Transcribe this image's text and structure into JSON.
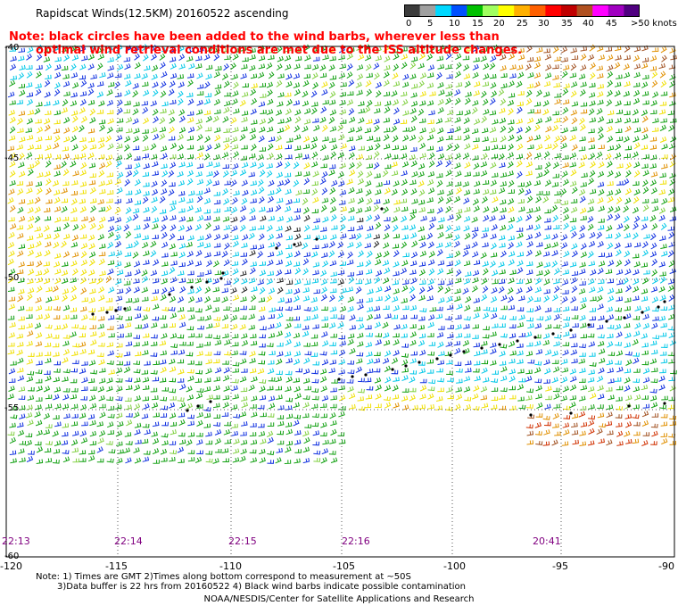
{
  "title": "Rapidscat Winds(12.5KM) 20160522 ascending",
  "note": {
    "line1": "Note: black circles have been added to the wind barbs, wherever less than",
    "line2": "optimal wind retrieval conditions are met due to the ISS altitude changes."
  },
  "colorbar": {
    "labels": [
      "0",
      "5",
      "10",
      "15",
      "20",
      "25",
      "30",
      "35",
      "40",
      "45",
      ">50 knots"
    ],
    "colors": [
      "#3c3c3c",
      "#a0a0a0",
      "#00d8ff",
      "#0050ff",
      "#00c000",
      "#a0ff60",
      "#ffff00",
      "#ffb000",
      "#ff6000",
      "#ff0000",
      "#c00000",
      "#b05020",
      "#ff00ff",
      "#a000c0",
      "#500080"
    ]
  },
  "x_axis": {
    "labels": [
      "-120",
      "-115",
      "-110",
      "-105",
      "-100",
      "-95",
      "-90"
    ]
  },
  "y_axis": {
    "labels": [
      "-45",
      "-50",
      "-55",
      "-60"
    ],
    "corner_label": "-40"
  },
  "pass_times": [
    "22:13",
    "22:14",
    "22:15",
    "22:16",
    "20:41"
  ],
  "footer": {
    "line1": "Note: 1) Times are GMT 2)Times along bottom correspond to measurement at ~50S",
    "line2": "3)Data buffer is 22 hrs from 20160522 4) Black wind barbs indicate possible contamination",
    "credit": "NOAA/NESDIS/Center for Satellite Applications and Research"
  }
}
